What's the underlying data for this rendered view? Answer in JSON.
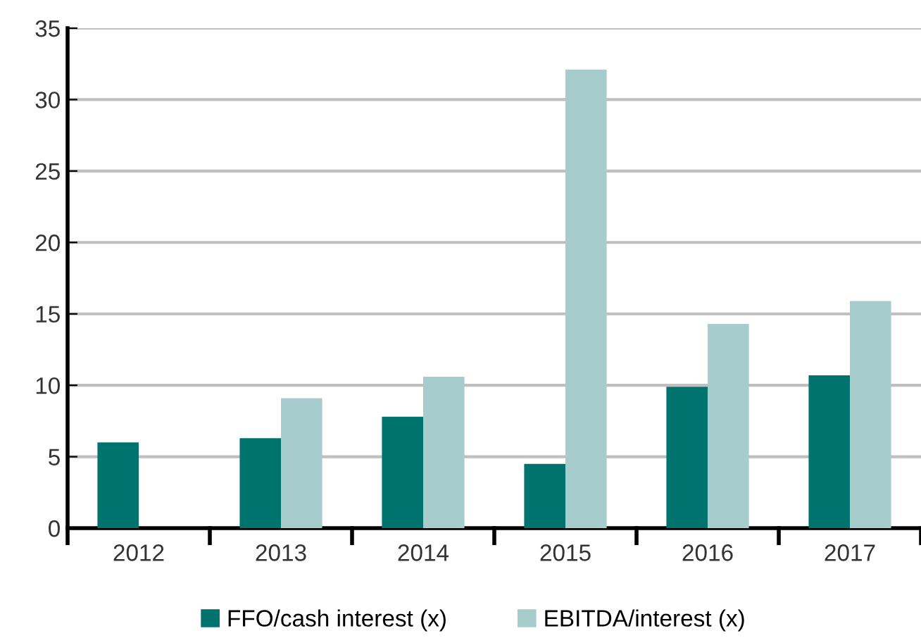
{
  "chart_data": {
    "type": "bar",
    "categories": [
      "2012",
      "2013",
      "2014",
      "2015",
      "2016",
      "2017"
    ],
    "series": [
      {
        "name": "FFO/cash interest (x)",
        "color": "#00736e",
        "values": [
          6.0,
          6.3,
          7.8,
          4.5,
          9.9,
          10.7
        ]
      },
      {
        "name": "EBITDA/interest (x)",
        "color": "#a6cdcc",
        "values": [
          null,
          9.1,
          10.6,
          32.1,
          14.3,
          15.9
        ]
      }
    ],
    "ylim": [
      0,
      35
    ],
    "yticks": [
      0,
      5,
      10,
      15,
      20,
      25,
      30,
      35
    ],
    "grid": "y",
    "legend": "bottom"
  }
}
